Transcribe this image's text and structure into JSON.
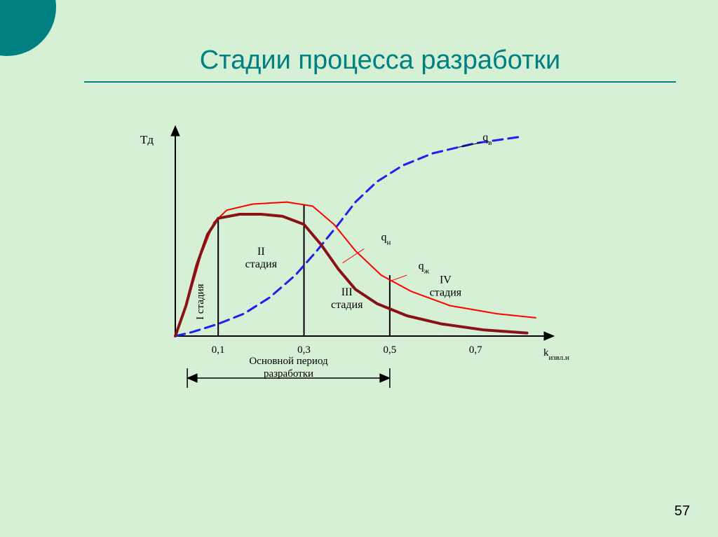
{
  "slide": {
    "title": "Стадии процесса разработки",
    "number": "57"
  },
  "chart": {
    "type": "line",
    "background": "#d5f0d5",
    "axis": {
      "color": "#000000",
      "width": 2,
      "y_label": "Тд",
      "x_label": "kизвл.н",
      "x_ticks": [
        "0,1",
        "0,3",
        "0,5",
        "0,7"
      ],
      "font_size": 15
    },
    "dividers": {
      "color": "#000000",
      "width": 2,
      "x_positions": [
        0.1,
        0.3,
        0.5
      ]
    },
    "stages": {
      "I": "I стадия",
      "II": "II\nстадия",
      "III": "III\nстадия",
      "IV": "IV\nстадия"
    },
    "curves": {
      "qv": {
        "label": "qв",
        "color": "#2020ee",
        "width": 3,
        "dash": "14 8",
        "points": [
          [
            0,
            0
          ],
          [
            0.04,
            0.02
          ],
          [
            0.1,
            0.06
          ],
          [
            0.16,
            0.11
          ],
          [
            0.22,
            0.19
          ],
          [
            0.28,
            0.3
          ],
          [
            0.33,
            0.42
          ],
          [
            0.38,
            0.55
          ],
          [
            0.42,
            0.66
          ],
          [
            0.47,
            0.76
          ],
          [
            0.53,
            0.84
          ],
          [
            0.6,
            0.9
          ],
          [
            0.7,
            0.95
          ],
          [
            0.8,
            0.98
          ]
        ]
      },
      "qn": {
        "label": "qн",
        "color": "#881218",
        "width": 4,
        "points": [
          [
            0,
            0
          ],
          [
            0.025,
            0.15
          ],
          [
            0.05,
            0.35
          ],
          [
            0.075,
            0.5
          ],
          [
            0.1,
            0.58
          ],
          [
            0.15,
            0.6
          ],
          [
            0.2,
            0.6
          ],
          [
            0.25,
            0.59
          ],
          [
            0.3,
            0.55
          ],
          [
            0.34,
            0.45
          ],
          [
            0.38,
            0.33
          ],
          [
            0.42,
            0.23
          ],
          [
            0.47,
            0.16
          ],
          [
            0.54,
            0.1
          ],
          [
            0.62,
            0.06
          ],
          [
            0.72,
            0.03
          ],
          [
            0.82,
            0.015
          ]
        ]
      },
      "qzh": {
        "label": "qж",
        "color": "#ff0000",
        "width": 2,
        "points": [
          [
            0,
            0
          ],
          [
            0.03,
            0.18
          ],
          [
            0.06,
            0.4
          ],
          [
            0.09,
            0.56
          ],
          [
            0.12,
            0.62
          ],
          [
            0.18,
            0.65
          ],
          [
            0.26,
            0.66
          ],
          [
            0.32,
            0.64
          ],
          [
            0.37,
            0.55
          ],
          [
            0.42,
            0.42
          ],
          [
            0.48,
            0.3
          ],
          [
            0.55,
            0.22
          ],
          [
            0.64,
            0.15
          ],
          [
            0.75,
            0.11
          ],
          [
            0.84,
            0.09
          ]
        ]
      }
    },
    "bracket": {
      "label": "Основной период\nразработки",
      "font_size": 15
    }
  }
}
